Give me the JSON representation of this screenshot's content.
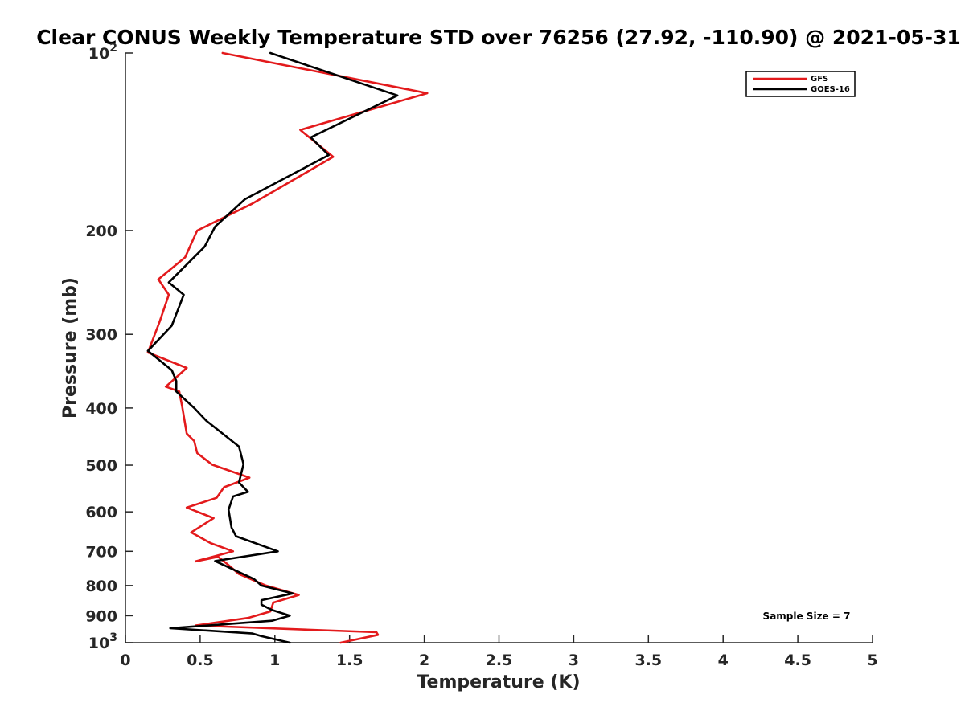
{
  "chart_data": {
    "type": "line",
    "title": "Clear CONUS Weekly Temperature STD over 76256 (27.92, -110.90) @ 2021-05-31",
    "xlabel": "Temperature (K)",
    "ylabel": "Pressure (mb)",
    "xlim": [
      0,
      5
    ],
    "ylim": [
      100,
      1000
    ],
    "y_scale": "log",
    "y_reversed": true,
    "x_ticks": [
      "0",
      "0.5",
      "1",
      "1.5",
      "2",
      "2.5",
      "3",
      "3.5",
      "4",
      "4.5",
      "5"
    ],
    "y_ticks": [
      {
        "value": 100,
        "base": "10",
        "exp": "2"
      },
      {
        "value": 200,
        "label": "200"
      },
      {
        "value": 300,
        "label": "300"
      },
      {
        "value": 400,
        "label": "400"
      },
      {
        "value": 500,
        "label": "500"
      },
      {
        "value": 600,
        "label": "600"
      },
      {
        "value": 700,
        "label": "700"
      },
      {
        "value": 800,
        "label": "800"
      },
      {
        "value": 900,
        "label": "900"
      },
      {
        "value": 1000,
        "base": "10",
        "exp": "3"
      }
    ],
    "grid": false,
    "legend_position": "top-right",
    "annotation": "Sample Size = 7",
    "series": [
      {
        "name": "GFS",
        "color": "#e31a1c",
        "points": [
          [
            0.65,
            100
          ],
          [
            2.02,
            117
          ],
          [
            1.17,
            135
          ],
          [
            1.39,
            150
          ],
          [
            0.85,
            180
          ],
          [
            0.48,
            200
          ],
          [
            0.4,
            222
          ],
          [
            0.22,
            242
          ],
          [
            0.29,
            257
          ],
          [
            0.23,
            285
          ],
          [
            0.15,
            322
          ],
          [
            0.41,
            342
          ],
          [
            0.27,
            368
          ],
          [
            0.36,
            375
          ],
          [
            0.38,
            398
          ],
          [
            0.41,
            442
          ],
          [
            0.46,
            455
          ],
          [
            0.48,
            477
          ],
          [
            0.58,
            499
          ],
          [
            0.83,
            525
          ],
          [
            0.66,
            545
          ],
          [
            0.61,
            568
          ],
          [
            0.41,
            590
          ],
          [
            0.59,
            615
          ],
          [
            0.44,
            650
          ],
          [
            0.57,
            678
          ],
          [
            0.72,
            700
          ],
          [
            0.47,
            728
          ],
          [
            0.62,
            715
          ],
          [
            0.68,
            735
          ],
          [
            0.76,
            765
          ],
          [
            0.94,
            800
          ],
          [
            1.16,
            830
          ],
          [
            0.99,
            855
          ],
          [
            0.97,
            885
          ],
          [
            0.82,
            908
          ],
          [
            0.47,
            935
          ],
          [
            1.68,
            960
          ],
          [
            1.69,
            970
          ],
          [
            1.44,
            1000
          ]
        ]
      },
      {
        "name": "GOES-16",
        "color": "#000000",
        "points": [
          [
            0.97,
            100
          ],
          [
            1.82,
            118
          ],
          [
            1.24,
            139
          ],
          [
            1.36,
            149
          ],
          [
            0.8,
            177
          ],
          [
            0.6,
            197
          ],
          [
            0.53,
            213
          ],
          [
            0.29,
            245
          ],
          [
            0.39,
            257
          ],
          [
            0.31,
            290
          ],
          [
            0.15,
            320
          ],
          [
            0.31,
            345
          ],
          [
            0.34,
            360
          ],
          [
            0.34,
            375
          ],
          [
            0.46,
            400
          ],
          [
            0.54,
            420
          ],
          [
            0.76,
            465
          ],
          [
            0.79,
            498
          ],
          [
            0.76,
            535
          ],
          [
            0.82,
            555
          ],
          [
            0.72,
            565
          ],
          [
            0.69,
            595
          ],
          [
            0.71,
            638
          ],
          [
            0.74,
            660
          ],
          [
            1.02,
            700
          ],
          [
            0.6,
            727
          ],
          [
            0.86,
            780
          ],
          [
            0.91,
            800
          ],
          [
            1.12,
            825
          ],
          [
            0.91,
            847
          ],
          [
            0.91,
            862
          ],
          [
            0.98,
            880
          ],
          [
            1.1,
            900
          ],
          [
            0.98,
            918
          ],
          [
            0.3,
            945
          ],
          [
            0.85,
            965
          ],
          [
            0.91,
            975
          ],
          [
            1.1,
            1000
          ]
        ]
      }
    ]
  }
}
